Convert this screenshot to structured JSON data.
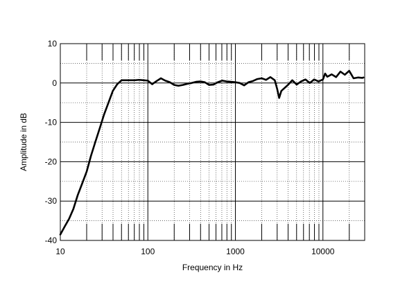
{
  "chart_data": {
    "type": "line",
    "title": "",
    "xlabel": "Frequency in Hz",
    "ylabel": "Amplitude in dB",
    "x_scale": "log",
    "xlim": [
      10,
      30000
    ],
    "ylim": [
      -40,
      10
    ],
    "x_ticks": [
      10,
      100,
      1000,
      10000
    ],
    "x_tick_labels": [
      "10",
      "100",
      "1000",
      "10000"
    ],
    "y_ticks": [
      -40,
      -30,
      -20,
      -10,
      0,
      10
    ],
    "y_tick_labels": [
      "-40",
      "-30",
      "-20",
      "-10",
      "0",
      "10"
    ],
    "grid": true,
    "legend": "none",
    "line_color": "#000000",
    "series": [
      {
        "x": [
          10,
          11.2,
          12.6,
          14.1,
          15.8,
          17.8,
          20,
          22.4,
          25.1,
          28.2,
          31.6,
          35.5,
          39.8,
          44.7,
          50.1,
          56.2,
          63.1,
          70.8,
          79.4,
          89.1,
          100,
          112,
          126,
          141,
          158,
          178,
          200,
          224,
          251,
          282,
          316,
          355,
          398,
          447,
          501,
          562,
          631,
          708,
          794,
          891,
          1000,
          1122,
          1259,
          1413,
          1585,
          1778,
          1995,
          2239,
          2512,
          2818,
          3000,
          3162,
          3350,
          3548,
          3981,
          4467,
          5012,
          5623,
          6310,
          7079,
          7943,
          8913,
          10000,
          10590,
          11220,
          12590,
          14130,
          15850,
          17780,
          19950,
          22390,
          25120,
          28180,
          29000
        ],
        "y": [
          -38.5,
          -36.5,
          -34.5,
          -32.0,
          -28.5,
          -25.5,
          -22.5,
          -18.5,
          -15.0,
          -11.5,
          -8.0,
          -5.0,
          -2.0,
          -0.3,
          0.7,
          0.7,
          0.7,
          0.7,
          0.8,
          0.7,
          0.6,
          -0.3,
          0.5,
          1.2,
          0.6,
          0.2,
          -0.5,
          -0.7,
          -0.5,
          -0.2,
          0.0,
          0.3,
          0.4,
          0.2,
          -0.5,
          -0.4,
          0.2,
          0.6,
          0.4,
          0.3,
          0.2,
          0.0,
          -0.6,
          0.2,
          0.5,
          1.0,
          1.2,
          0.8,
          1.5,
          0.7,
          -1.5,
          -3.8,
          -2.0,
          -1.5,
          -0.5,
          0.7,
          -0.4,
          0.4,
          0.9,
          0.0,
          0.9,
          0.4,
          0.9,
          2.4,
          1.6,
          2.2,
          1.5,
          2.9,
          2.1,
          3.1,
          1.2,
          1.4,
          1.3,
          1.4
        ]
      }
    ]
  }
}
